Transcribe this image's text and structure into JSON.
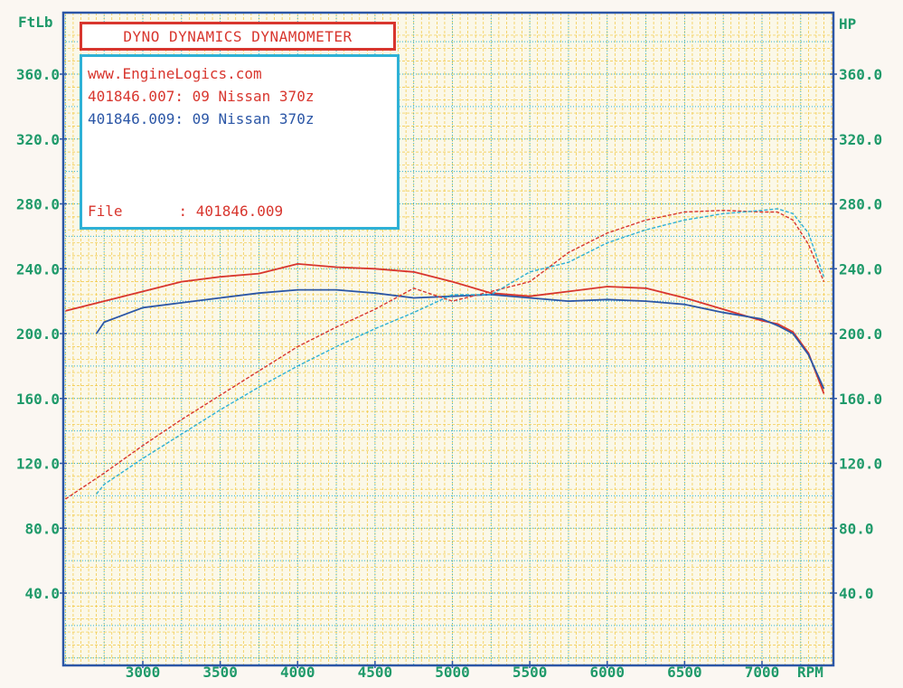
{
  "header": {
    "title": "DYNO DYNAMICS DYNAMOMETER",
    "website": "www.EngineLogics.com",
    "file_label": "File",
    "file_value": ": 401846.009"
  },
  "colors": {
    "red_run": "#d8362e",
    "blue_run": "#2b56a6",
    "teal_run": "#2eb1d6",
    "grid": "#f2c63a",
    "axis": "#2b56a6",
    "labels": "#1f9a6a"
  },
  "chart_data": {
    "type": "line",
    "left_unit": "FtLb",
    "right_unit": "HP",
    "x_unit": "RPM",
    "xlim": [
      2500,
      7500
    ],
    "ylim": [
      0,
      390
    ],
    "y_ticks": [
      "40.0",
      "80.0",
      "120.0",
      "160.0",
      "200.0",
      "240.0",
      "280.0",
      "320.0",
      "360.0"
    ],
    "y_tick_values": [
      40,
      80,
      120,
      160,
      200,
      240,
      280,
      320,
      360
    ],
    "x_ticks": [
      "3000",
      "3500",
      "4000",
      "4500",
      "5000",
      "5500",
      "6000",
      "6500",
      "7000"
    ],
    "x_tick_values": [
      3000,
      3500,
      4000,
      4500,
      5000,
      5500,
      6000,
      6500,
      7000
    ],
    "grid": true,
    "series": [
      {
        "name": "401846.007: 09 Nissan 370z",
        "measure": "torque",
        "color": "#d8362e",
        "x": [
          2500,
          2750,
          3000,
          3250,
          3500,
          3750,
          4000,
          4250,
          4500,
          4750,
          5000,
          5250,
          5500,
          5750,
          6000,
          6250,
          6500,
          6750,
          7000,
          7100,
          7200,
          7300,
          7400
        ],
        "y": [
          214,
          220,
          226,
          232,
          235,
          237,
          243,
          241,
          240,
          238,
          232,
          225,
          223,
          226,
          229,
          228,
          222,
          215,
          208,
          206,
          201,
          188,
          163
        ]
      },
      {
        "name": "401846.009: 09 Nissan 370z",
        "measure": "torque",
        "color": "#2b56a6",
        "x": [
          2700,
          2750,
          3000,
          3250,
          3500,
          3750,
          4000,
          4250,
          4500,
          4750,
          5000,
          5250,
          5500,
          5750,
          6000,
          6250,
          6500,
          6750,
          7000,
          7100,
          7200,
          7300,
          7400
        ],
        "y": [
          200,
          207,
          216,
          219,
          222,
          225,
          227,
          227,
          225,
          222,
          223,
          224,
          222,
          220,
          221,
          220,
          218,
          213,
          209,
          205,
          200,
          187,
          166
        ]
      },
      {
        "name": "401846.007: 09 Nissan 370z",
        "measure": "power",
        "color": "#d8362e",
        "x": [
          2500,
          2750,
          3000,
          3250,
          3500,
          3750,
          4000,
          4250,
          4500,
          4750,
          5000,
          5250,
          5500,
          5750,
          6000,
          6250,
          6500,
          6750,
          7000,
          7100,
          7200,
          7300,
          7400
        ],
        "y": [
          98,
          114,
          131,
          147,
          162,
          177,
          192,
          204,
          215,
          228,
          220,
          226,
          232,
          250,
          262,
          270,
          275,
          276,
          275,
          275,
          270,
          255,
          232
        ]
      },
      {
        "name": "401846.009: 09 Nissan 370z",
        "measure": "power",
        "color": "#2eb1d6",
        "x": [
          2700,
          2750,
          3000,
          3250,
          3500,
          3750,
          4000,
          4250,
          4500,
          4750,
          5000,
          5250,
          5500,
          5750,
          6000,
          6250,
          6500,
          6750,
          7000,
          7100,
          7200,
          7300,
          7400
        ],
        "y": [
          101,
          107,
          123,
          138,
          153,
          167,
          180,
          192,
          203,
          213,
          224,
          224,
          238,
          244,
          256,
          264,
          270,
          274,
          276,
          277,
          274,
          262,
          235
        ]
      }
    ]
  }
}
